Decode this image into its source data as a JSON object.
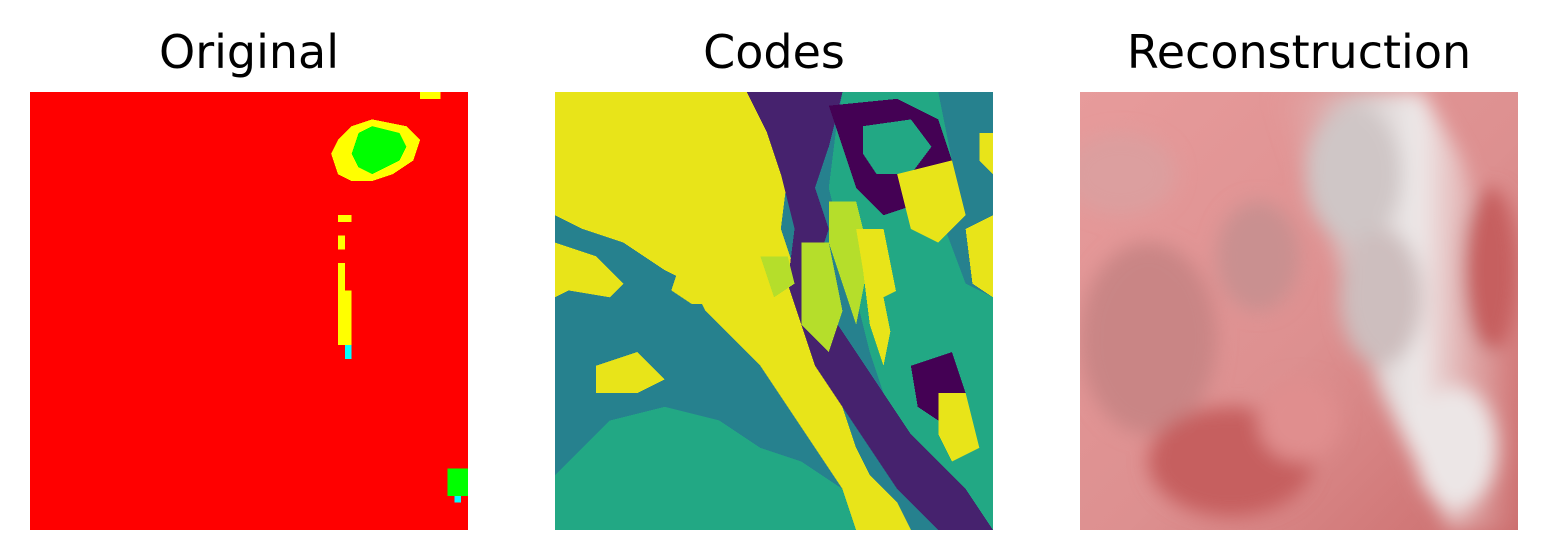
{
  "panels": [
    {
      "title": "Original"
    },
    {
      "title": "Codes"
    },
    {
      "title": "Reconstruction"
    }
  ],
  "colors": {
    "background": "#ffffff",
    "original_red": "#ff0000",
    "original_yellow": "#ffff00",
    "original_green": "#00ff00",
    "original_cyan": "#00ffff",
    "codes_yellow": "#e8e419",
    "codes_purple": "#46226e",
    "codes_dark_purple": "#440154",
    "codes_teal": "#26818e",
    "codes_green": "#22a884",
    "codes_lime": "#b5de2b",
    "recon_pink": "#e79b9b",
    "recon_gray": "#d2c8c8",
    "recon_white": "#ece6e6",
    "recon_dark": "#c65e5e"
  }
}
